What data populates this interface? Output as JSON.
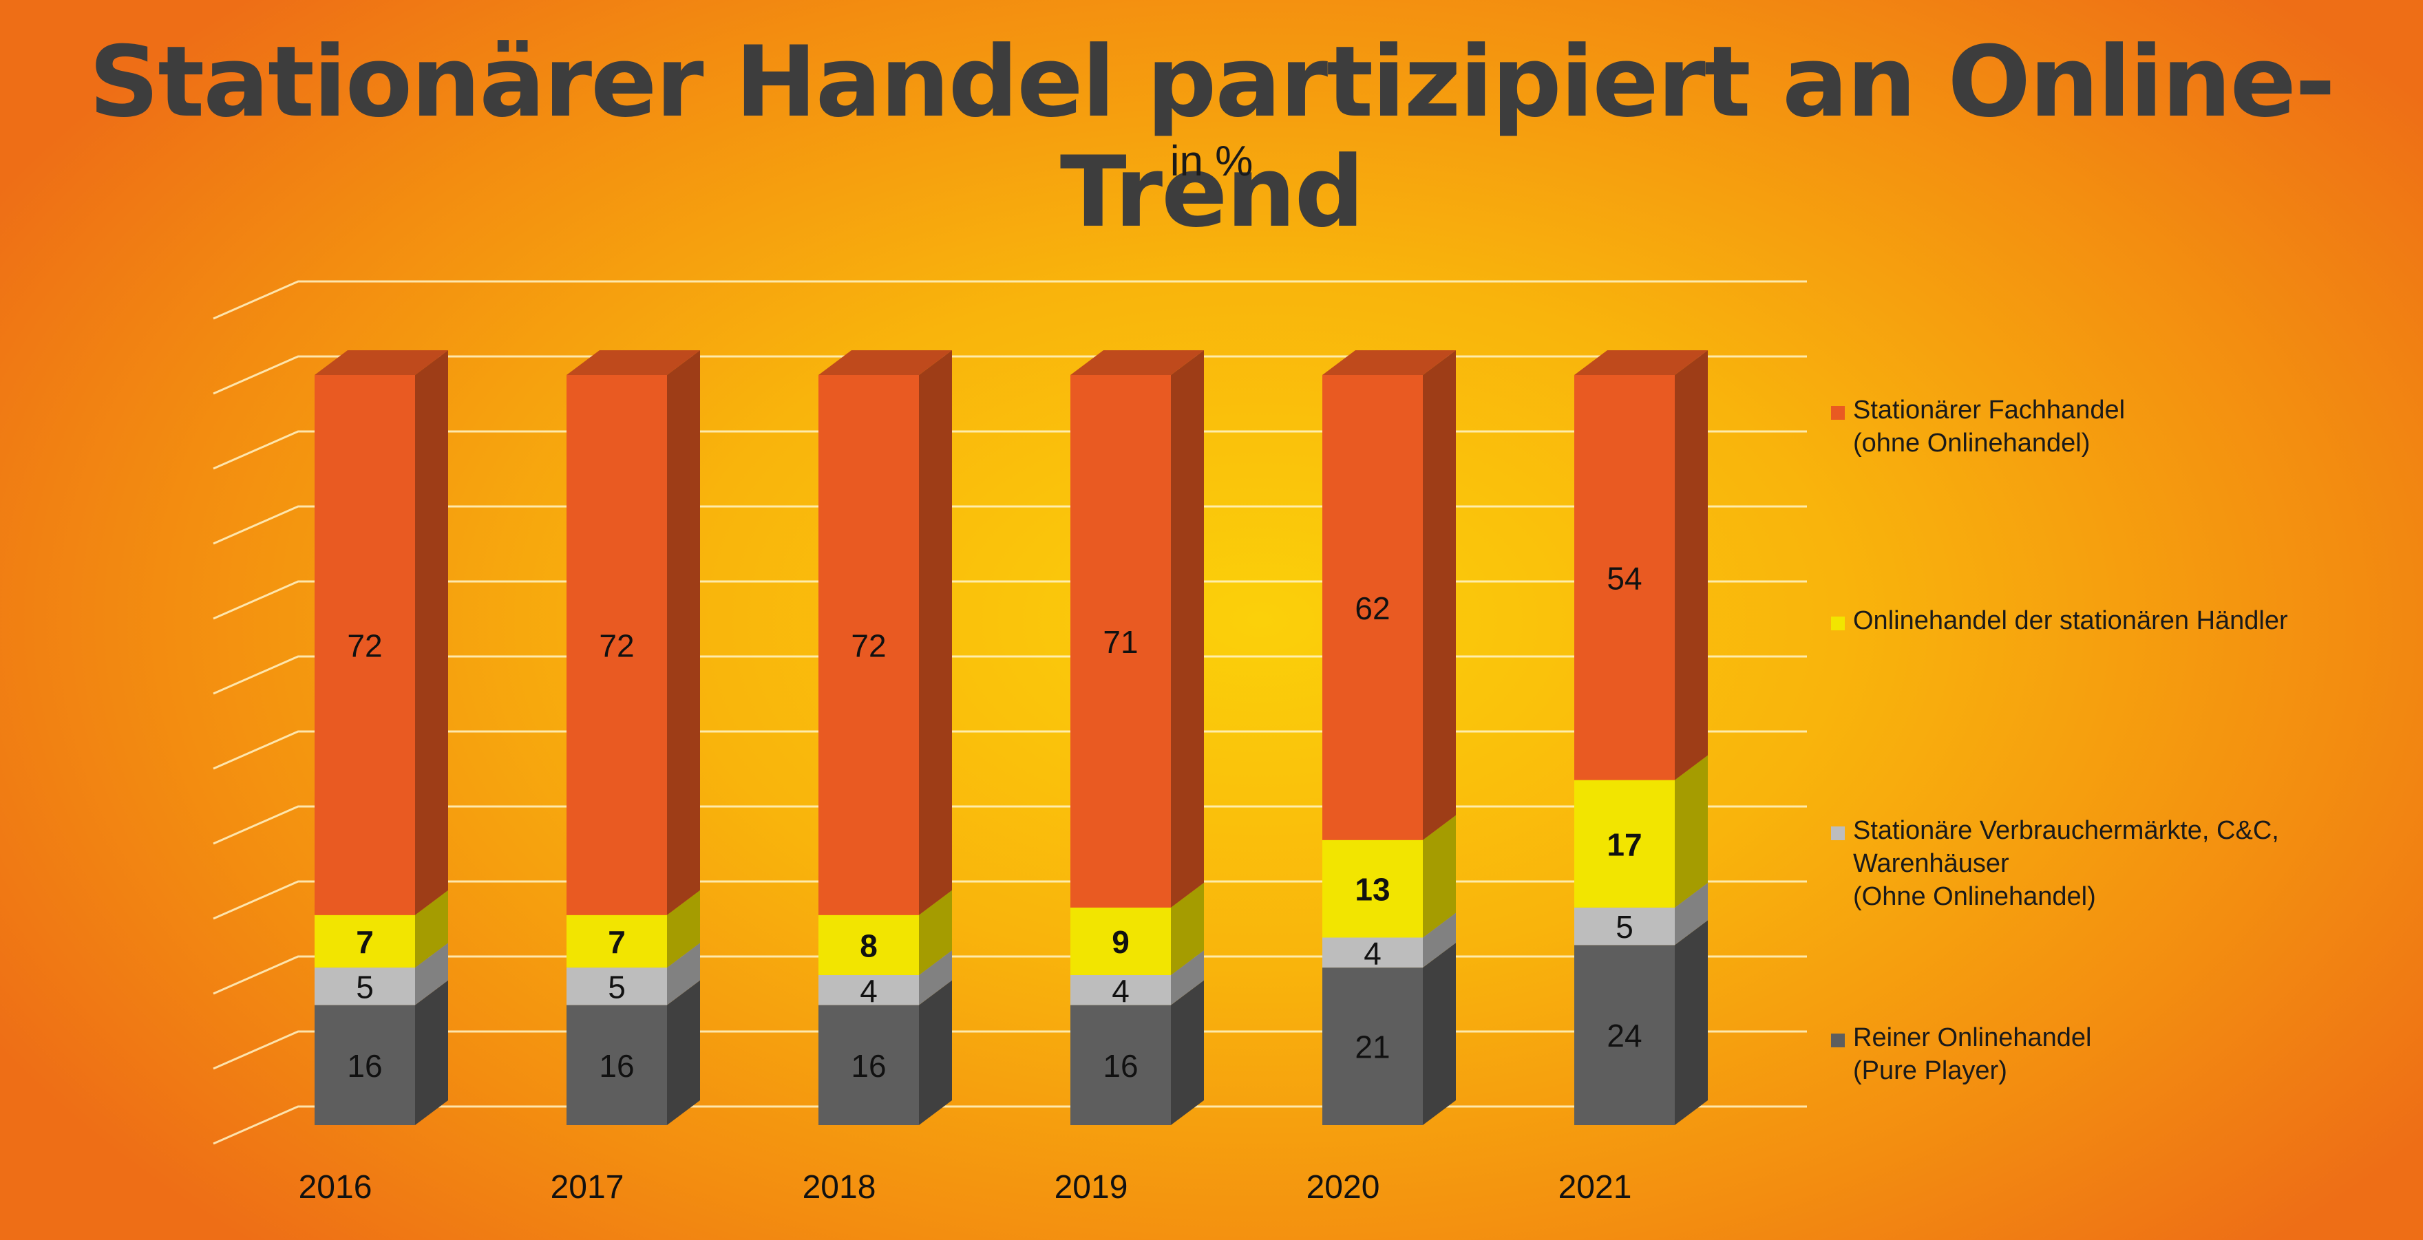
{
  "title": "Stationärer Handel partizipiert an Online-Trend",
  "subtitle": "in %",
  "colors": {
    "fachhandel": "#e95a22",
    "onlinestationaer": "#f2e500",
    "verbrauchermaerkte": "#bdbdbd",
    "pureplayer": "#5e5e5e",
    "gridline": "#fff4c8"
  },
  "legend": [
    {
      "key": "fachhandel",
      "label": "Stationärer Fachhandel\n(ohne Onlinehandel)"
    },
    {
      "key": "onlinestationaer",
      "label": "Onlinehandel der stationären Händler"
    },
    {
      "key": "verbrauchermaerkte",
      "label": "Stationäre Verbrauchermärkte, C&C,\nWarenhäuser\n(Ohne Onlinehandel)"
    },
    {
      "key": "pureplayer",
      "label": "Reiner Onlinehandel\n(Pure Player)"
    }
  ],
  "chart_data": {
    "type": "bar",
    "stacked": true,
    "title": "Stationärer Handel partizipiert an Online-Trend",
    "subtitle": "in %",
    "xlabel": "",
    "ylabel": "",
    "ylim": [
      0,
      110
    ],
    "grid": true,
    "legend_position": "right",
    "categories": [
      "2016",
      "2017",
      "2018",
      "2019",
      "2020",
      "2021"
    ],
    "series": [
      {
        "key": "pureplayer",
        "name": "Reiner Onlinehandel (Pure Player)",
        "values": [
          16,
          16,
          16,
          16,
          21,
          24
        ],
        "bold_labels": false
      },
      {
        "key": "verbrauchermaerkte",
        "name": "Stationäre Verbrauchermärkte, C&C, Warenhäuser (Ohne Onlinehandel)",
        "values": [
          5,
          5,
          4,
          4,
          4,
          5
        ],
        "bold_labels": false
      },
      {
        "key": "onlinestationaer",
        "name": "Onlinehandel der stationären Händler",
        "values": [
          7,
          7,
          8,
          9,
          13,
          17
        ],
        "bold_labels": true
      },
      {
        "key": "fachhandel",
        "name": "Stationärer Fachhandel (ohne Onlinehandel)",
        "values": [
          72,
          72,
          72,
          71,
          62,
          54
        ],
        "bold_labels": false
      }
    ]
  }
}
